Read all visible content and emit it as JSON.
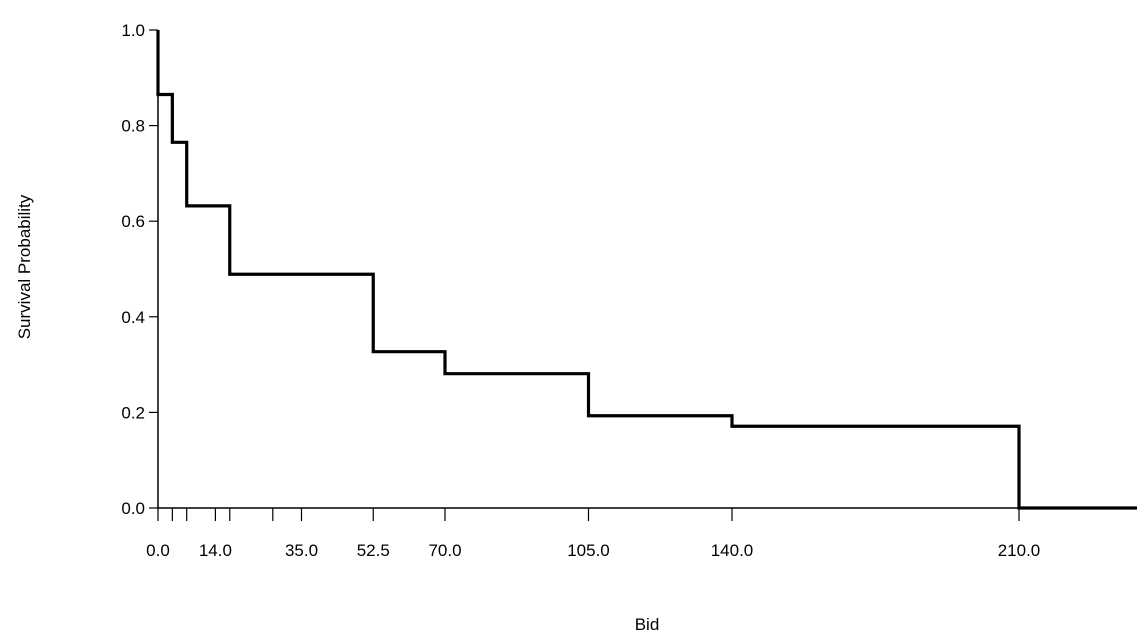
{
  "chart_data": {
    "type": "line",
    "step": "post",
    "title": "",
    "xlabel": "Bid",
    "ylabel": "Survival Probability",
    "xlim": [
      0,
      240
    ],
    "ylim": [
      0,
      1
    ],
    "grid": false,
    "legend": "none",
    "line_color": "#000000",
    "x_ticks": [
      0,
      3.5,
      7,
      14,
      17.5,
      28,
      35,
      52.5,
      70,
      105,
      140,
      210
    ],
    "x_tick_labels": [
      {
        "value": 0,
        "label": "0.0"
      },
      {
        "value": 14,
        "label": "14.0"
      },
      {
        "value": 35,
        "label": "35.0"
      },
      {
        "value": 52.5,
        "label": "52.5"
      },
      {
        "value": 70,
        "label": "70.0"
      },
      {
        "value": 105,
        "label": "105.0"
      },
      {
        "value": 140,
        "label": "140.0"
      },
      {
        "value": 210,
        "label": "210.0"
      }
    ],
    "y_ticks": [
      {
        "value": 0,
        "label": "0.0"
      },
      {
        "value": 0.2,
        "label": "0.2"
      },
      {
        "value": 0.4,
        "label": "0.4"
      },
      {
        "value": 0.6,
        "label": "0.6"
      },
      {
        "value": 0.8,
        "label": "0.8"
      },
      {
        "value": 1,
        "label": "1.0"
      }
    ],
    "series": [
      {
        "points": [
          {
            "x": 0,
            "y": 1.0
          },
          {
            "x": 0,
            "y": 0.865
          },
          {
            "x": 3.5,
            "y": 0.765
          },
          {
            "x": 7,
            "y": 0.632
          },
          {
            "x": 17.5,
            "y": 0.489
          },
          {
            "x": 52.5,
            "y": 0.327
          },
          {
            "x": 70,
            "y": 0.281
          },
          {
            "x": 105,
            "y": 0.193
          },
          {
            "x": 140,
            "y": 0.171
          },
          {
            "x": 210,
            "y": 0.0
          },
          {
            "x": 240,
            "y": 0.0
          }
        ]
      }
    ]
  }
}
